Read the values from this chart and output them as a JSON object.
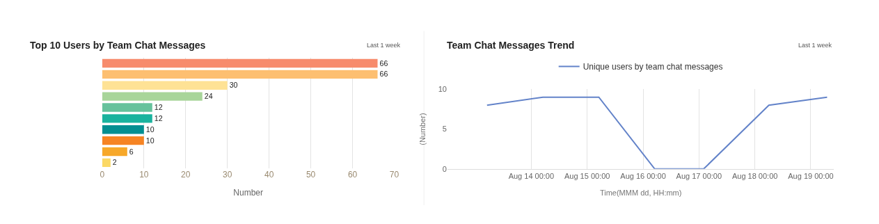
{
  "chart_data": [
    {
      "type": "bar",
      "title": "Top 10 Users by Team Chat Messages",
      "annotations": [
        "Last 1 week"
      ],
      "orientation": "horizontal",
      "categories": [
        null,
        null,
        null,
        null,
        null,
        null,
        null,
        null,
        null,
        null
      ],
      "values": [
        66,
        66,
        30,
        24,
        12,
        12,
        10,
        10,
        6,
        2
      ],
      "colors": [
        "#f78b6c",
        "#fdbf71",
        "#fee295",
        "#a8d59a",
        "#66c29c",
        "#1ab39e",
        "#028f91",
        "#f68423",
        "#f7a829",
        "#fbd865"
      ],
      "data_labels": true,
      "xlim": [
        0,
        70
      ],
      "xticks": [
        0,
        10,
        20,
        30,
        40,
        50,
        60,
        70
      ],
      "xlabel": "Number",
      "grid": "x",
      "tick_labels": "x"
    },
    {
      "type": "line",
      "title": "Team Chat Messages Trend",
      "annotations": [
        "Last 1 week"
      ],
      "x": [
        "--08-13T05:00",
        "--08-14T05:00",
        "--08-15T05:00",
        "--08-16T05:00",
        "--08-17T02:00",
        "--08-18T06:00",
        "--08-19T07:00"
      ],
      "series": [
        {
          "name": "Unique users by team chat messages",
          "color": "#6383c9",
          "values": [
            8,
            9,
            9,
            0,
            0,
            8,
            9
          ]
        }
      ],
      "legend": "top",
      "ylim": [
        0,
        10
      ],
      "yticks": [
        0,
        5,
        10
      ],
      "xlim": [
        "--08-12T12:00",
        "--08-19T10:00"
      ],
      "xticks": [
        {
          "value": "--08-14T00:00",
          "label": "Aug 14 00:00"
        },
        {
          "value": "--08-15T00:00",
          "label": "Aug 15 00:00"
        },
        {
          "value": "--08-16T00:00",
          "label": "Aug 16 00:00"
        },
        {
          "value": "--08-17T00:00",
          "label": "Aug 17 00:00"
        },
        {
          "value": "--08-18T00:00",
          "label": "Aug 18 00:00"
        },
        {
          "value": "--08-19T00:00",
          "label": "Aug 19 00:00"
        }
      ],
      "xlabel": "Time(MMM dd, HH:mm)",
      "ylabel": "(Number)",
      "grid": "x",
      "marker": "none",
      "line_style": "solid"
    }
  ]
}
